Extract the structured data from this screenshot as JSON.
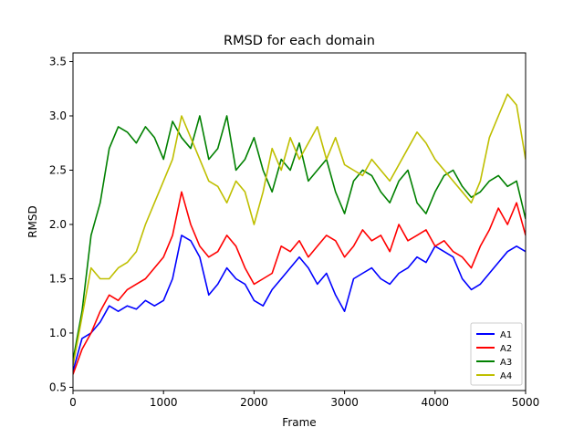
{
  "chart_data": {
    "type": "line",
    "title": "RMSD for each domain",
    "xlabel": "Frame",
    "ylabel": "RMSD",
    "xlim": [
      0,
      5000
    ],
    "ylim": [
      0.47,
      3.58
    ],
    "xticks": [
      0,
      1000,
      2000,
      3000,
      4000,
      5000
    ],
    "yticks": [
      0.5,
      1.0,
      1.5,
      2.0,
      2.5,
      3.0,
      3.5
    ],
    "xtick_labels": [
      "0",
      "1000",
      "2000",
      "3000",
      "4000",
      "5000"
    ],
    "ytick_labels": [
      "0.5",
      "1.0",
      "1.5",
      "2.0",
      "2.5",
      "3.0",
      "3.5"
    ],
    "grid": false,
    "legend_position": "lower-right",
    "series": [
      {
        "name": "A1",
        "color": "#0000ff",
        "x": [
          0,
          100,
          200,
          300,
          400,
          500,
          600,
          700,
          800,
          900,
          1000,
          1100,
          1200,
          1300,
          1400,
          1500,
          1600,
          1700,
          1800,
          1900,
          2000,
          2100,
          2200,
          2300,
          2400,
          2500,
          2600,
          2700,
          2800,
          2900,
          3000,
          3100,
          3200,
          3300,
          3400,
          3500,
          3600,
          3700,
          3800,
          3900,
          4000,
          4100,
          4200,
          4300,
          4400,
          4500,
          4600,
          4700,
          4800,
          4900,
          5000
        ],
        "y": [
          0.65,
          0.95,
          1.0,
          1.1,
          1.25,
          1.2,
          1.25,
          1.22,
          1.3,
          1.25,
          1.3,
          1.5,
          1.9,
          1.85,
          1.7,
          1.35,
          1.45,
          1.6,
          1.5,
          1.45,
          1.3,
          1.25,
          1.4,
          1.5,
          1.6,
          1.7,
          1.6,
          1.45,
          1.55,
          1.35,
          1.2,
          1.5,
          1.55,
          1.6,
          1.5,
          1.45,
          1.55,
          1.6,
          1.7,
          1.65,
          1.8,
          1.75,
          1.7,
          1.5,
          1.4,
          1.45,
          1.55,
          1.65,
          1.75,
          1.8,
          1.75
        ]
      },
      {
        "name": "A2",
        "color": "#ff0000",
        "x": [
          0,
          100,
          200,
          300,
          400,
          500,
          600,
          700,
          800,
          900,
          1000,
          1100,
          1200,
          1300,
          1400,
          1500,
          1600,
          1700,
          1800,
          1900,
          2000,
          2100,
          2200,
          2300,
          2400,
          2500,
          2600,
          2700,
          2800,
          2900,
          3000,
          3100,
          3200,
          3300,
          3400,
          3500,
          3600,
          3700,
          3800,
          3900,
          4000,
          4100,
          4200,
          4300,
          4400,
          4500,
          4600,
          4700,
          4800,
          4900,
          5000
        ],
        "y": [
          0.62,
          0.85,
          1.0,
          1.2,
          1.35,
          1.3,
          1.4,
          1.45,
          1.5,
          1.6,
          1.7,
          1.9,
          2.3,
          2.0,
          1.8,
          1.7,
          1.75,
          1.9,
          1.8,
          1.6,
          1.45,
          1.5,
          1.55,
          1.8,
          1.75,
          1.85,
          1.7,
          1.8,
          1.9,
          1.85,
          1.7,
          1.8,
          1.95,
          1.85,
          1.9,
          1.75,
          2.0,
          1.85,
          1.9,
          1.95,
          1.8,
          1.85,
          1.75,
          1.7,
          1.6,
          1.8,
          1.95,
          2.15,
          2.0,
          2.2,
          1.9
        ]
      },
      {
        "name": "A3",
        "color": "#008000",
        "x": [
          0,
          100,
          200,
          300,
          400,
          500,
          600,
          700,
          800,
          900,
          1000,
          1100,
          1200,
          1300,
          1400,
          1500,
          1600,
          1700,
          1800,
          1900,
          2000,
          2100,
          2200,
          2300,
          2400,
          2500,
          2600,
          2700,
          2800,
          2900,
          3000,
          3100,
          3200,
          3300,
          3400,
          3500,
          3600,
          3700,
          3800,
          3900,
          4000,
          4100,
          4200,
          4300,
          4400,
          4500,
          4600,
          4700,
          4800,
          4900,
          5000
        ],
        "y": [
          0.75,
          1.2,
          1.9,
          2.2,
          2.7,
          2.9,
          2.85,
          2.75,
          2.9,
          2.8,
          2.6,
          2.95,
          2.8,
          2.7,
          3.0,
          2.6,
          2.7,
          3.0,
          2.5,
          2.6,
          2.8,
          2.5,
          2.3,
          2.6,
          2.5,
          2.75,
          2.4,
          2.5,
          2.6,
          2.3,
          2.1,
          2.4,
          2.5,
          2.45,
          2.3,
          2.2,
          2.4,
          2.5,
          2.2,
          2.1,
          2.3,
          2.45,
          2.5,
          2.35,
          2.25,
          2.3,
          2.4,
          2.45,
          2.35,
          2.4,
          2.05
        ]
      },
      {
        "name": "A4",
        "color": "#bfbf00",
        "x": [
          0,
          100,
          200,
          300,
          400,
          500,
          600,
          700,
          800,
          900,
          1000,
          1100,
          1200,
          1300,
          1400,
          1500,
          1600,
          1700,
          1800,
          1900,
          2000,
          2100,
          2200,
          2300,
          2400,
          2500,
          2600,
          2700,
          2800,
          2900,
          3000,
          3100,
          3200,
          3300,
          3400,
          3500,
          3600,
          3700,
          3800,
          3900,
          4000,
          4100,
          4200,
          4300,
          4400,
          4500,
          4600,
          4700,
          4800,
          4900,
          5000
        ],
        "y": [
          0.7,
          1.15,
          1.6,
          1.5,
          1.5,
          1.6,
          1.65,
          1.75,
          2.0,
          2.2,
          2.4,
          2.6,
          3.0,
          2.8,
          2.6,
          2.4,
          2.35,
          2.2,
          2.4,
          2.3,
          2.0,
          2.3,
          2.7,
          2.5,
          2.8,
          2.6,
          2.75,
          2.9,
          2.6,
          2.8,
          2.55,
          2.5,
          2.45,
          2.6,
          2.5,
          2.4,
          2.55,
          2.7,
          2.85,
          2.75,
          2.6,
          2.5,
          2.4,
          2.3,
          2.2,
          2.4,
          2.8,
          3.0,
          3.2,
          3.1,
          2.6
        ]
      }
    ]
  }
}
